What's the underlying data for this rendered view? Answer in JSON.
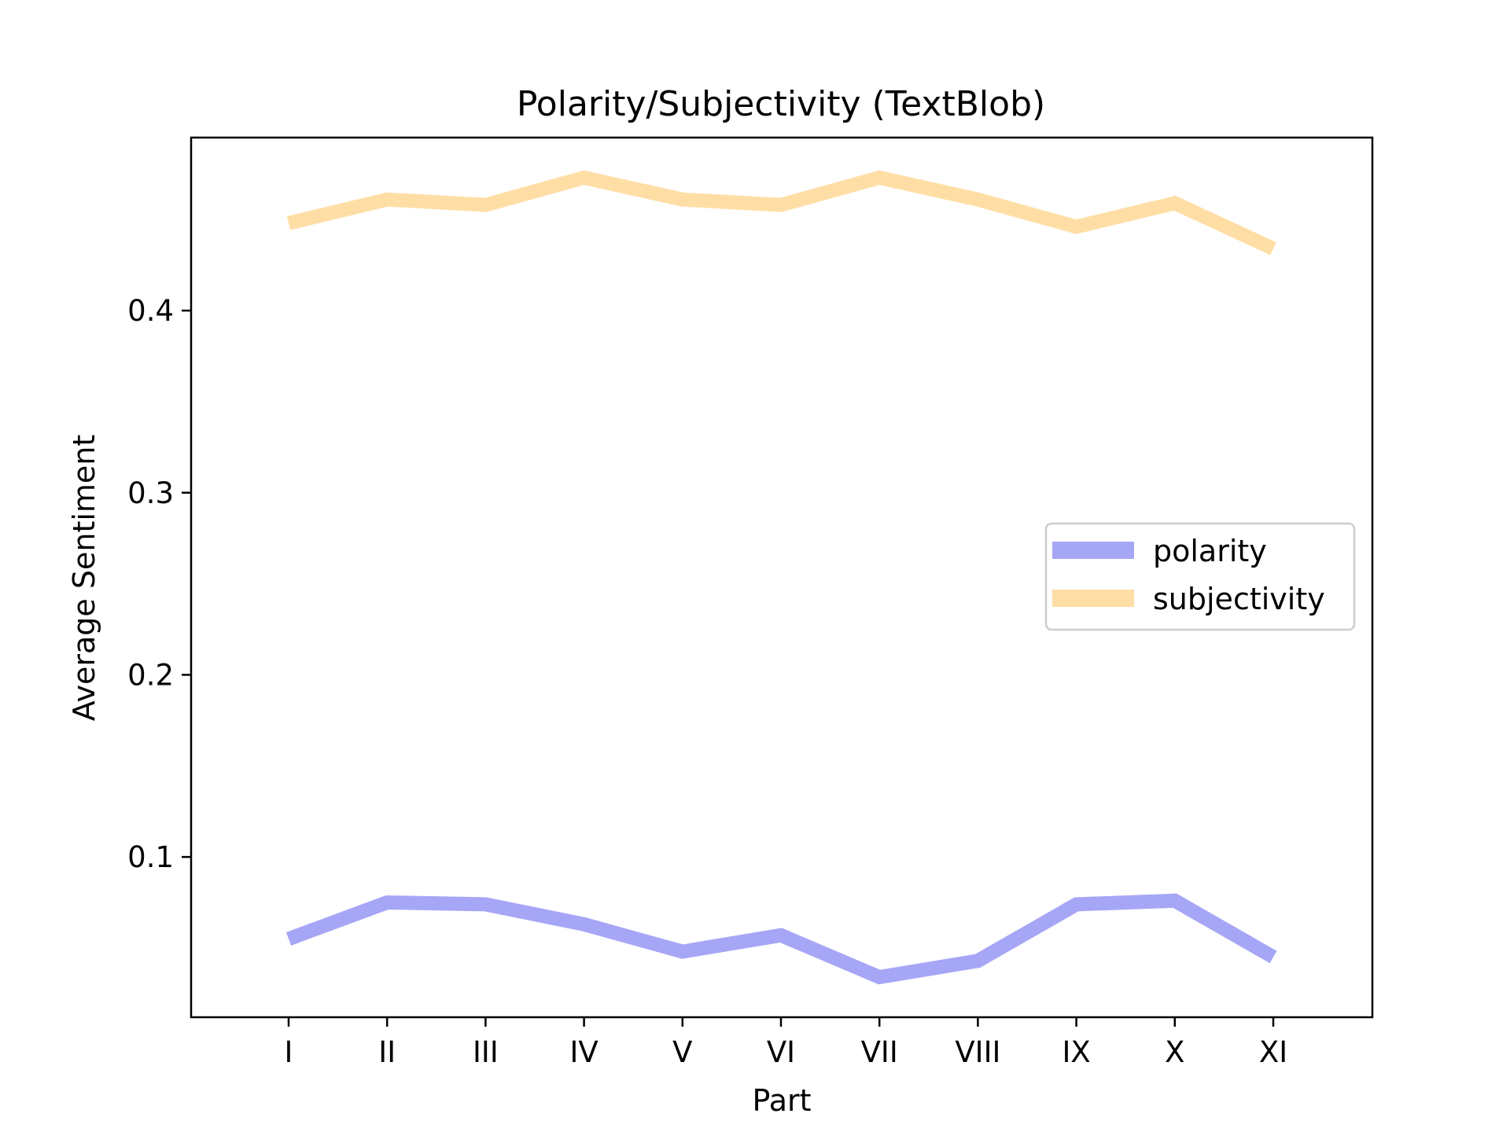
{
  "chart_data": {
    "type": "line",
    "title": "Polarity/Subjectivity (TextBlob)",
    "xlabel": "Part",
    "ylabel": "Average Sentiment",
    "categories": [
      "I",
      "II",
      "III",
      "IV",
      "V",
      "VI",
      "VII",
      "VIII",
      "IX",
      "X",
      "XI"
    ],
    "series": [
      {
        "name": "polarity",
        "color": "#a6a6f7",
        "values": [
          0.055,
          0.075,
          0.074,
          0.063,
          0.048,
          0.057,
          0.034,
          0.043,
          0.074,
          0.076,
          0.045
        ]
      },
      {
        "name": "subjectivity",
        "color": "#ffdea6",
        "values": [
          0.448,
          0.461,
          0.458,
          0.473,
          0.461,
          0.458,
          0.473,
          0.461,
          0.446,
          0.459,
          0.434
        ]
      }
    ],
    "ylim": [
      0.012,
      0.495
    ],
    "yticks": [
      0.1,
      0.2,
      0.3,
      0.4
    ],
    "ytick_labels": [
      "0.1",
      "0.2",
      "0.3",
      "0.4"
    ],
    "grid": false,
    "legend_position": "center-right"
  }
}
